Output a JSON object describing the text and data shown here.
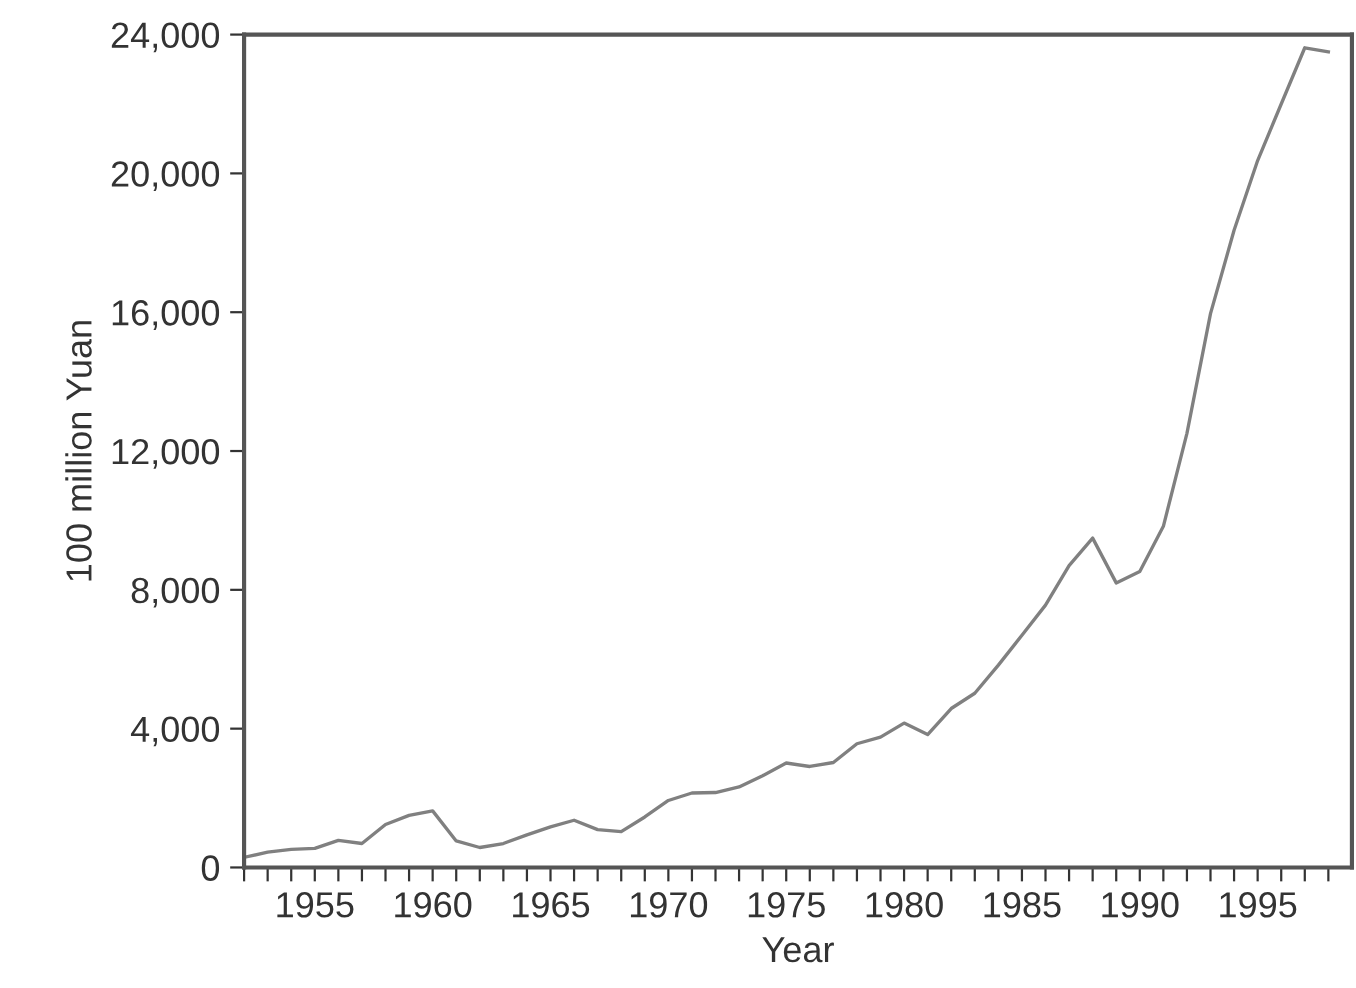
{
  "chart_data": {
    "type": "line",
    "xlabel": "Year",
    "ylabel": "100 million Yuan",
    "x": [
      1952,
      1953,
      1954,
      1955,
      1956,
      1957,
      1958,
      1959,
      1960,
      1961,
      1962,
      1963,
      1964,
      1965,
      1966,
      1967,
      1968,
      1969,
      1970,
      1971,
      1972,
      1973,
      1974,
      1975,
      1976,
      1977,
      1978,
      1979,
      1980,
      1981,
      1982,
      1983,
      1984,
      1985,
      1986,
      1987,
      1988,
      1989,
      1990,
      1991,
      1992,
      1993,
      1994,
      1995,
      1996,
      1997,
      1998
    ],
    "series": [
      {
        "color": "#808080",
        "values": [
          290,
          440,
          520,
          550,
          780,
          690,
          1240,
          1500,
          1630,
          765,
          575,
          690,
          940,
          1170,
          1360,
          1090,
          1035,
          1455,
          1930,
          2145,
          2160,
          2320,
          2645,
          3010,
          2910,
          3025,
          3565,
          3755,
          4160,
          3830,
          4580,
          5020,
          5830,
          6690,
          7560,
          8700,
          9490,
          8200,
          8530,
          9830,
          12510,
          15960,
          18360,
          20370,
          22000,
          23620,
          23500
        ]
      }
    ],
    "xlim": [
      1952,
      1999
    ],
    "ylim": [
      0,
      24000
    ],
    "xticks": [
      {
        "value": 1952,
        "label": null
      },
      {
        "value": 1953,
        "label": null
      },
      {
        "value": 1954,
        "label": null
      },
      1955,
      {
        "value": 1956,
        "label": null
      },
      {
        "value": 1957,
        "label": null
      },
      {
        "value": 1958,
        "label": null
      },
      {
        "value": 1959,
        "label": null
      },
      1960,
      {
        "value": 1961,
        "label": null
      },
      {
        "value": 1962,
        "label": null
      },
      {
        "value": 1963,
        "label": null
      },
      {
        "value": 1964,
        "label": null
      },
      1965,
      {
        "value": 1966,
        "label": null
      },
      {
        "value": 1967,
        "label": null
      },
      {
        "value": 1968,
        "label": null
      },
      {
        "value": 1969,
        "label": null
      },
      1970,
      {
        "value": 1971,
        "label": null
      },
      {
        "value": 1972,
        "label": null
      },
      {
        "value": 1973,
        "label": null
      },
      {
        "value": 1974,
        "label": null
      },
      1975,
      {
        "value": 1976,
        "label": null
      },
      {
        "value": 1977,
        "label": null
      },
      {
        "value": 1978,
        "label": null
      },
      {
        "value": 1979,
        "label": null
      },
      1980,
      {
        "value": 1981,
        "label": null
      },
      {
        "value": 1982,
        "label": null
      },
      {
        "value": 1983,
        "label": null
      },
      {
        "value": 1984,
        "label": null
      },
      1985,
      {
        "value": 1986,
        "label": null
      },
      {
        "value": 1987,
        "label": null
      },
      {
        "value": 1988,
        "label": null
      },
      {
        "value": 1989,
        "label": null
      },
      1990,
      {
        "value": 1991,
        "label": null
      },
      {
        "value": 1992,
        "label": null
      },
      {
        "value": 1993,
        "label": null
      },
      {
        "value": 1994,
        "label": null
      },
      1995,
      {
        "value": 1996,
        "label": null
      },
      {
        "value": 1997,
        "label": null
      },
      {
        "value": 1998,
        "label": null
      }
    ],
    "yticks": [
      {
        "value": 0,
        "label": "0"
      },
      {
        "value": 4000,
        "label": "4,000"
      },
      {
        "value": 8000,
        "label": "8,000"
      },
      {
        "value": 12000,
        "label": "12,000"
      },
      {
        "value": 16000,
        "label": "16,000"
      },
      {
        "value": 20000,
        "label": "20,000"
      },
      {
        "value": 24000,
        "label": "24,000"
      }
    ],
    "grid": false,
    "legend": false,
    "marker": "none",
    "line_style": "solid"
  }
}
